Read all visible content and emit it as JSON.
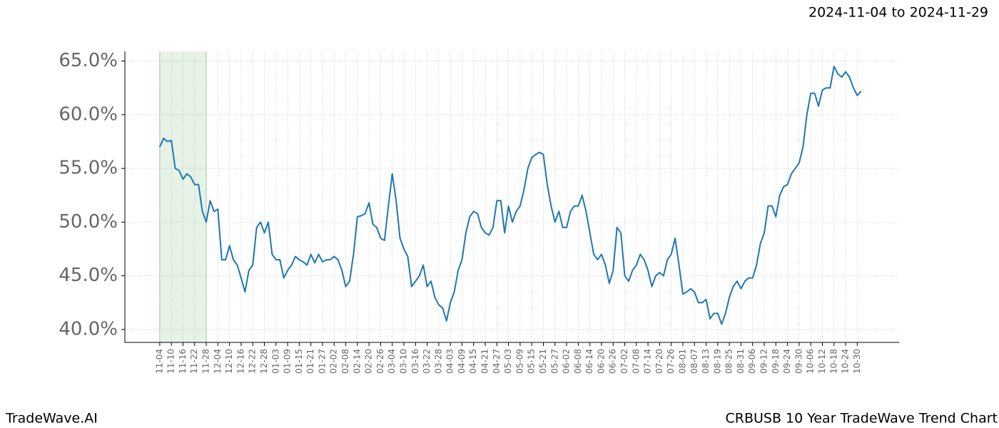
{
  "chart_data": {
    "type": "line",
    "title": "CRBUSB 10 Year TradeWave Trend Chart",
    "subtitle": "2024-11-04 to 2024-11-29",
    "watermark": "TradeWave.AI",
    "highlight": {
      "start": "11-04",
      "end": "11-28",
      "color": "#e5f2e5"
    },
    "categories": [
      "11-04",
      null,
      null,
      "11-10",
      null,
      null,
      "11-16",
      null,
      null,
      "11-22",
      null,
      null,
      "11-28",
      null,
      null,
      "12-04",
      null,
      null,
      "12-10",
      null,
      null,
      "12-16",
      null,
      null,
      "12-22",
      null,
      null,
      "12-28",
      null,
      null,
      "01-03",
      null,
      null,
      "01-09",
      null,
      null,
      "01-15",
      null,
      null,
      "01-21",
      null,
      null,
      "01-27",
      null,
      null,
      "02-02",
      null,
      null,
      "02-08",
      null,
      null,
      "02-14",
      null,
      null,
      "02-20",
      null,
      null,
      "02-26",
      null,
      null,
      "03-04",
      null,
      null,
      "03-10",
      null,
      null,
      "03-16",
      null,
      null,
      "03-22",
      null,
      null,
      "03-28",
      null,
      null,
      "04-03",
      null,
      null,
      "04-09",
      null,
      null,
      "04-15",
      null,
      null,
      "04-21",
      null,
      null,
      "04-27",
      null,
      null,
      "05-03",
      null,
      null,
      "05-09",
      null,
      null,
      "05-15",
      null,
      null,
      "05-21",
      null,
      null,
      "05-27",
      null,
      null,
      "06-02",
      null,
      null,
      "06-08",
      null,
      null,
      "06-14",
      null,
      null,
      "06-20",
      null,
      null,
      "06-26",
      null,
      null,
      "07-02",
      null,
      null,
      "07-08",
      null,
      null,
      "07-14",
      null,
      null,
      "07-20",
      null,
      null,
      "07-26",
      null,
      null,
      "08-01",
      null,
      null,
      "08-07",
      null,
      null,
      "08-13",
      null,
      null,
      "08-19",
      null,
      null,
      "08-25",
      null,
      null,
      "08-31",
      null,
      null,
      "09-06",
      null,
      null,
      "09-12",
      null,
      null,
      "09-18",
      null,
      null,
      "09-24",
      null,
      null,
      "09-30",
      null,
      null,
      "10-06",
      null,
      null,
      "10-12",
      null,
      null,
      "10-18",
      null,
      null,
      "10-24",
      null,
      null,
      "10-30",
      null
    ],
    "series": [
      {
        "color": "#1f77b4",
        "values": [
          57.0,
          57.8,
          57.5,
          57.6,
          55,
          54.8,
          54.0,
          54.5,
          54.2,
          53.5,
          53.5,
          51,
          50,
          52,
          51,
          51.2,
          46.5,
          46.5,
          47.8,
          46.5,
          46,
          44.8,
          43.5,
          45.5,
          46,
          49.5,
          50,
          49,
          50,
          47,
          46.5,
          46.5,
          44.8,
          45.5,
          46,
          46.8,
          46.5,
          46.3,
          46,
          47,
          46.2,
          47,
          46.3,
          46.5,
          46.5,
          46.8,
          46.5,
          45.5,
          44,
          44.5,
          47,
          50.5,
          50.6,
          50.8,
          51.8,
          49.8,
          49.5,
          48.5,
          48.3,
          51.5,
          54.5,
          52,
          48.5,
          47.5,
          46.8,
          44,
          44.5,
          45,
          46,
          44,
          44.5,
          43,
          42.3,
          42,
          40.8,
          42.5,
          43.5,
          45.5,
          46.5,
          49,
          50.5,
          51,
          50.8,
          49.5,
          49,
          48.8,
          49.5,
          52,
          52,
          49,
          51.5,
          50,
          51,
          51.5,
          53,
          55,
          56,
          56.3,
          56.5,
          56.3,
          53.5,
          51.5,
          50,
          51,
          49.5,
          49.5,
          51,
          51.5,
          51.5,
          52.5,
          51,
          49,
          47,
          46.5,
          47,
          46,
          44.3,
          45.5,
          49.5,
          49,
          45,
          44.5,
          45.5,
          46,
          47,
          46.5,
          45.5,
          44,
          45,
          45.3,
          45,
          46.5,
          47,
          48.5,
          46,
          43.3,
          43.5,
          43.8,
          43.5,
          42.5,
          42.5,
          42.8,
          41,
          41.5,
          41.5,
          40.5,
          41.5,
          43,
          44,
          44.5,
          43.8,
          44.5,
          44.8,
          44.8,
          46,
          48,
          49,
          51.5,
          51.5,
          50.5,
          52.5,
          53.3,
          53.5,
          54.5,
          55,
          55.5,
          57,
          60,
          62,
          62,
          60.8,
          62.3,
          62.5,
          62.5,
          64.5,
          63.8,
          63.5,
          64,
          63.5,
          62.5,
          61.8,
          62.2
        ]
      }
    ],
    "ylim": [
      38.8,
      65.9
    ],
    "yticks": [
      {
        "value": 40,
        "label": "40.0%"
      },
      {
        "value": 45,
        "label": "45.0%"
      },
      {
        "value": 50,
        "label": "50.0%"
      },
      {
        "value": 55,
        "label": "55.0%"
      },
      {
        "value": 60,
        "label": "60.0%"
      },
      {
        "value": 65,
        "label": "65.0%"
      }
    ],
    "grid": true
  }
}
